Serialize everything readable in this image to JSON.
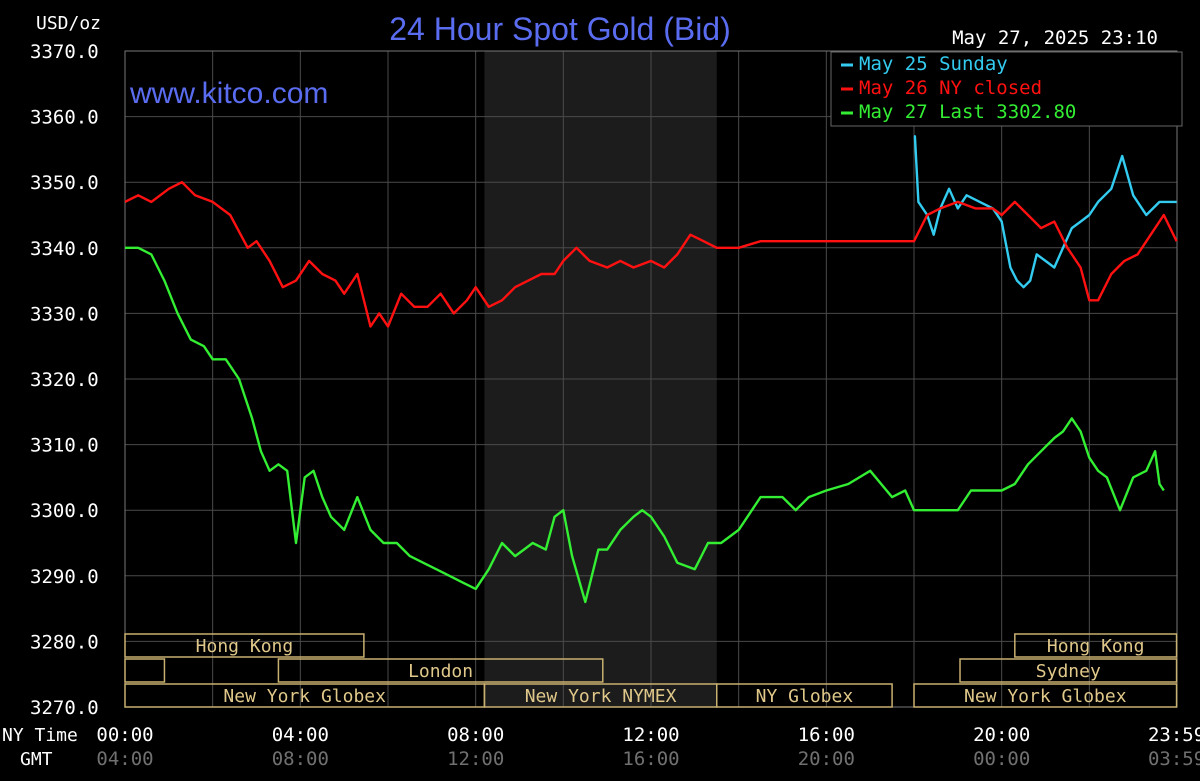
{
  "header": {
    "title": "24 Hour Spot Gold (Bid)",
    "units": "USD/oz",
    "timestamp": "May 27, 2025 23:10",
    "watermark": "www.kitco.com"
  },
  "legend": [
    {
      "label": "May 25 Sunday",
      "color": "#33ccf0"
    },
    {
      "label": "May 26 NY closed",
      "color": "#ff1111"
    },
    {
      "label": "May 27 Last 3302.80",
      "color": "#33ee33"
    }
  ],
  "axis": {
    "y_ticks": [
      "3370.0",
      "3360.0",
      "3350.0",
      "3340.0",
      "3330.0",
      "3320.0",
      "3310.0",
      "3300.0",
      "3290.0",
      "3280.0",
      "3270.0"
    ],
    "x_row_label_ny": "NY Time",
    "x_row_label_gmt": "GMT",
    "x_ticks_ny": [
      "00:00",
      "04:00",
      "08:00",
      "12:00",
      "16:00",
      "20:00",
      "23:59"
    ],
    "x_ticks_gmt": [
      "04:00",
      "08:00",
      "12:00",
      "16:00",
      "20:00",
      "00:00",
      "03:59"
    ]
  },
  "sessions": [
    {
      "label": "Hong Kong",
      "row": 0,
      "start": 0.0,
      "end": 5.45
    },
    {
      "label": "",
      "row": 1,
      "start": 0.0,
      "end": 0.9
    },
    {
      "label": "London",
      "row": 1,
      "start": 3.5,
      "end": 10.9
    },
    {
      "label": "New York Globex",
      "row": 2,
      "start": 0.0,
      "end": 8.2
    },
    {
      "label": "New York NYMEX",
      "row": 2,
      "start": 8.2,
      "end": 13.5
    },
    {
      "label": "NY Globex",
      "row": 2,
      "start": 13.5,
      "end": 17.5
    },
    {
      "label": "Hong Kong",
      "row": 0,
      "start": 20.3,
      "end": 23.99
    },
    {
      "label": "Sydney",
      "row": 1,
      "start": 19.05,
      "end": 23.99
    },
    {
      "label": "New York Globex",
      "row": 2,
      "start": 18.0,
      "end": 23.99
    }
  ],
  "chart_data": {
    "type": "line",
    "title": "24 Hour Spot Gold (Bid)",
    "ylabel": "USD/oz",
    "xlabel": "NY Time",
    "xlim": [
      0,
      24
    ],
    "ylim": [
      3270,
      3370
    ],
    "grid": true,
    "legend_position": "top-right",
    "shaded_region": [
      8.2,
      13.5
    ],
    "series": [
      {
        "name": "May 25 Sunday",
        "color": "#33ccf0",
        "x": [
          18.0,
          18.02,
          18.1,
          18.3,
          18.45,
          18.6,
          18.8,
          19.0,
          19.2,
          19.5,
          19.8,
          20.0,
          20.2,
          20.35,
          20.5,
          20.65,
          20.8,
          21.0,
          21.2,
          21.4,
          21.6,
          21.8,
          22.0,
          22.2,
          22.5,
          22.75,
          23.0,
          23.3,
          23.6,
          23.99
        ],
        "y": [
          3357.0,
          3357.0,
          3347.0,
          3345.0,
          3342.0,
          3346.0,
          3349.0,
          3346.0,
          3348.0,
          3347.0,
          3346.0,
          3344.0,
          3337.0,
          3335.0,
          3334.0,
          3335.0,
          3339.0,
          3338.0,
          3337.0,
          3340.0,
          3343.0,
          3344.0,
          3345.0,
          3347.0,
          3349.0,
          3354.0,
          3348.0,
          3345.0,
          3347.0,
          3347.0
        ]
      },
      {
        "name": "May 26 NY closed",
        "color": "#ff1111",
        "x": [
          0.0,
          0.3,
          0.6,
          1.0,
          1.3,
          1.6,
          2.0,
          2.4,
          2.8,
          3.0,
          3.3,
          3.6,
          3.9,
          4.2,
          4.5,
          4.8,
          5.0,
          5.3,
          5.6,
          5.8,
          6.0,
          6.3,
          6.6,
          6.9,
          7.2,
          7.5,
          7.8,
          8.0,
          8.3,
          8.6,
          8.9,
          9.2,
          9.5,
          9.8,
          10.0,
          10.3,
          10.6,
          11.0,
          11.3,
          11.6,
          12.0,
          12.3,
          12.6,
          12.9,
          13.2,
          13.5,
          14.0,
          14.5,
          15.0,
          16.0,
          17.0,
          17.5,
          18.0,
          18.3,
          18.6,
          19.0,
          19.4,
          19.8,
          20.0,
          20.3,
          20.6,
          20.9,
          21.2,
          21.5,
          21.8,
          22.0,
          22.2,
          22.5,
          22.8,
          23.1,
          23.4,
          23.7,
          23.99
        ],
        "y": [
          3347.0,
          3348.0,
          3347.0,
          3349.0,
          3350.0,
          3348.0,
          3347.0,
          3345.0,
          3340.0,
          3341.0,
          3338.0,
          3334.0,
          3335.0,
          3338.0,
          3336.0,
          3335.0,
          3333.0,
          3336.0,
          3328.0,
          3330.0,
          3328.0,
          3333.0,
          3331.0,
          3331.0,
          3333.0,
          3330.0,
          3332.0,
          3334.0,
          3331.0,
          3332.0,
          3334.0,
          3335.0,
          3336.0,
          3336.0,
          3338.0,
          3340.0,
          3338.0,
          3337.0,
          3338.0,
          3337.0,
          3338.0,
          3337.0,
          3339.0,
          3342.0,
          3341.0,
          3340.0,
          3340.0,
          3341.0,
          3341.0,
          3341.0,
          3341.0,
          3341.0,
          3341.0,
          3345.0,
          3346.0,
          3347.0,
          3346.0,
          3346.0,
          3345.0,
          3347.0,
          3345.0,
          3343.0,
          3344.0,
          3340.0,
          3337.0,
          3332.0,
          3332.0,
          3336.0,
          3338.0,
          3339.0,
          3342.0,
          3345.0,
          3341.0
        ]
      },
      {
        "name": "May 27 Last 3302.80",
        "color": "#33ee33",
        "x": [
          0.0,
          0.3,
          0.6,
          0.9,
          1.2,
          1.5,
          1.8,
          2.0,
          2.3,
          2.6,
          2.9,
          3.1,
          3.3,
          3.5,
          3.7,
          3.9,
          4.1,
          4.3,
          4.5,
          4.7,
          5.0,
          5.3,
          5.6,
          5.9,
          6.2,
          6.5,
          6.8,
          7.1,
          7.4,
          7.7,
          8.0,
          8.3,
          8.6,
          8.9,
          9.1,
          9.3,
          9.6,
          9.8,
          10.0,
          10.2,
          10.5,
          10.8,
          11.0,
          11.3,
          11.6,
          11.8,
          12.0,
          12.3,
          12.6,
          13.0,
          13.3,
          13.6,
          14.0,
          14.5,
          15.0,
          15.3,
          15.6,
          16.0,
          16.5,
          17.0,
          17.5,
          17.8,
          18.0,
          18.3,
          18.6,
          19.0,
          19.3,
          19.6,
          20.0,
          20.3,
          20.6,
          20.9,
          21.2,
          21.4,
          21.6,
          21.8,
          22.0,
          22.2,
          22.4,
          22.7,
          23.0,
          23.3,
          23.5,
          23.6,
          23.7
        ],
        "y": [
          3340.0,
          3340.0,
          3339.0,
          3335.0,
          3330.0,
          3326.0,
          3325.0,
          3323.0,
          3323.0,
          3320.0,
          3314.0,
          3309.0,
          3306.0,
          3307.0,
          3306.0,
          3295.0,
          3305.0,
          3306.0,
          3302.0,
          3299.0,
          3297.0,
          3302.0,
          3297.0,
          3295.0,
          3295.0,
          3293.0,
          3292.0,
          3291.0,
          3290.0,
          3289.0,
          3288.0,
          3291.0,
          3295.0,
          3293.0,
          3294.0,
          3295.0,
          3294.0,
          3299.0,
          3300.0,
          3293.0,
          3286.0,
          3294.0,
          3294.0,
          3297.0,
          3299.0,
          3300.0,
          3299.0,
          3296.0,
          3292.0,
          3291.0,
          3295.0,
          3295.0,
          3297.0,
          3302.0,
          3302.0,
          3300.0,
          3302.0,
          3303.0,
          3304.0,
          3306.0,
          3302.0,
          3303.0,
          3300.0,
          3300.0,
          3300.0,
          3300.0,
          3303.0,
          3303.0,
          3303.0,
          3304.0,
          3307.0,
          3309.0,
          3311.0,
          3312.0,
          3314.0,
          3312.0,
          3308.0,
          3306.0,
          3305.0,
          3300.0,
          3305.0,
          3306.0,
          3309.0,
          3304.0,
          3303.0
        ]
      }
    ]
  }
}
